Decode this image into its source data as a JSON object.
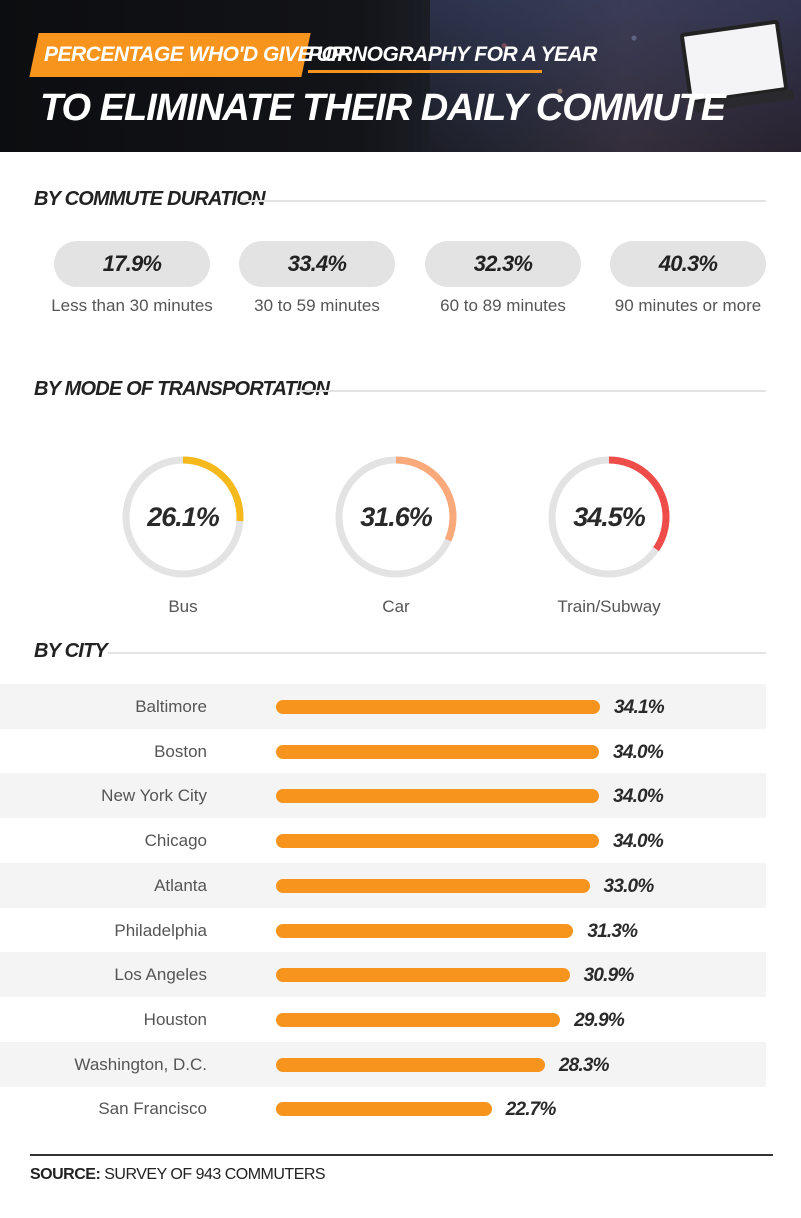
{
  "header": {
    "tag_orange": "PERCENTAGE WHO'D GIVE UP",
    "tag_white": "PORNOGRAPHY FOR A YEAR",
    "headline": "TO ELIMINATE THEIR DAILY COMMUTE"
  },
  "sections": {
    "duration": "BY COMMUTE DURATION",
    "mode": "BY MODE OF TRANSPORTATION",
    "city": "BY CITY"
  },
  "footer": {
    "source_label": "SOURCE:",
    "source_text": "SURVEY OF 943 COMMUTERS"
  },
  "colors": {
    "accent": "#f7941d",
    "bus": "#f5b91c",
    "car": "#f9a97a",
    "train": "#ef4d4a",
    "track": "#e3e3e3"
  },
  "chart_data": [
    {
      "type": "table",
      "title": "BY COMMUTE DURATION",
      "categories": [
        "Less than 30 minutes",
        "30 to 59 minutes",
        "60 to 89 minutes",
        "90 minutes or more"
      ],
      "values": [
        17.9,
        33.4,
        32.3,
        40.3
      ],
      "labels": [
        "17.9%",
        "33.4%",
        "32.3%",
        "40.3%"
      ]
    },
    {
      "type": "pie",
      "title": "BY MODE OF TRANSPORTATION",
      "categories": [
        "Bus",
        "Car",
        "Train/Subway"
      ],
      "values": [
        26.1,
        31.6,
        34.5
      ],
      "labels": [
        "26.1%",
        "31.6%",
        "34.5%"
      ]
    },
    {
      "type": "bar",
      "title": "BY CITY",
      "categories": [
        "Baltimore",
        "Boston",
        "New York City",
        "Chicago",
        "Atlanta",
        "Philadelphia",
        "Los Angeles",
        "Houston",
        "Washington, D.C.",
        "San Francisco"
      ],
      "values": [
        34.1,
        34.0,
        34.0,
        34.0,
        33.0,
        31.3,
        30.9,
        29.9,
        28.3,
        22.7
      ],
      "labels": [
        "34.1%",
        "34.0%",
        "34.0%",
        "34.0%",
        "33.0%",
        "31.3%",
        "30.9%",
        "29.9%",
        "28.3%",
        "22.7%"
      ]
    }
  ]
}
